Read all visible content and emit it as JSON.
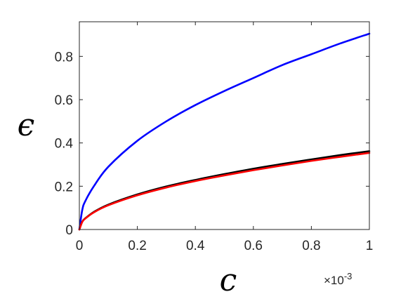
{
  "chart_data": {
    "type": "line",
    "title": "",
    "xlabel": "c",
    "ylabel": "ϵ",
    "xlim": [
      0,
      0.001
    ],
    "ylim": [
      0,
      0.96
    ],
    "x_tick_labels": [
      "0",
      "0.2",
      "0.4",
      "0.6",
      "0.8",
      "1"
    ],
    "x_ticks": [
      0,
      0.0002,
      0.0004,
      0.0006,
      0.0008,
      0.001
    ],
    "x_exponent_label": "×10",
    "x_exponent_power": "-3",
    "y_tick_labels": [
      "0",
      "0.2",
      "0.4",
      "0.6",
      "0.8"
    ],
    "y_ticks": [
      0,
      0.2,
      0.4,
      0.6,
      0.8
    ],
    "grid": false,
    "legend": "none",
    "series": [
      {
        "color": "#0000ff",
        "x": [
          0,
          1e-05,
          2e-05,
          5e-05,
          0.0001,
          0.0002,
          0.0003,
          0.0004,
          0.0005,
          0.0006,
          0.0007,
          0.0008,
          0.0009,
          0.001
        ],
        "y": [
          0,
          0.09,
          0.13,
          0.2,
          0.29,
          0.41,
          0.5,
          0.575,
          0.64,
          0.7,
          0.76,
          0.81,
          0.86,
          0.905
        ]
      },
      {
        "color": "#000000",
        "x": [
          0,
          1e-05,
          2e-05,
          5e-05,
          0.0001,
          0.0002,
          0.0003,
          0.0004,
          0.0005,
          0.0006,
          0.0007,
          0.0008,
          0.0009,
          0.001
        ],
        "y": [
          0,
          0.036,
          0.051,
          0.081,
          0.115,
          0.162,
          0.199,
          0.229,
          0.256,
          0.281,
          0.303,
          0.324,
          0.344,
          0.362
        ]
      },
      {
        "color": "#ff0000",
        "x": [
          0,
          1e-05,
          2e-05,
          5e-05,
          0.0001,
          0.0002,
          0.0003,
          0.0004,
          0.0005,
          0.0006,
          0.0007,
          0.0008,
          0.0009,
          0.001
        ],
        "y": [
          0,
          0.035,
          0.05,
          0.079,
          0.112,
          0.158,
          0.194,
          0.224,
          0.25,
          0.274,
          0.296,
          0.317,
          0.336,
          0.354
        ]
      }
    ]
  }
}
